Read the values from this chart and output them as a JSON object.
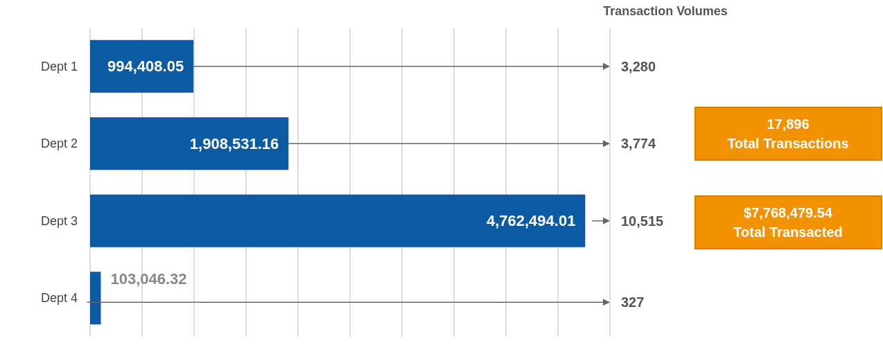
{
  "chart_data": {
    "type": "bar",
    "orientation": "horizontal",
    "categories": [
      "Dept 1",
      "Dept 2",
      "Dept 3",
      "Dept 4"
    ],
    "values": [
      994408.05,
      1908531.16,
      4762494.01,
      103046.32
    ],
    "color": "#0b5aa2",
    "value_labels": [
      "994,408.05",
      "1,908,531.16",
      "4,762,494.01",
      "103,046.32"
    ],
    "grid": "x",
    "tick_labels": "y",
    "annotations": [
      "Transaction Volumes",
      "17,896\nTotal Transactions",
      "$7,768,479.54\nTotal Transacted",
      "3,280",
      "3,774",
      "10,515",
      "327"
    ]
  }
}
